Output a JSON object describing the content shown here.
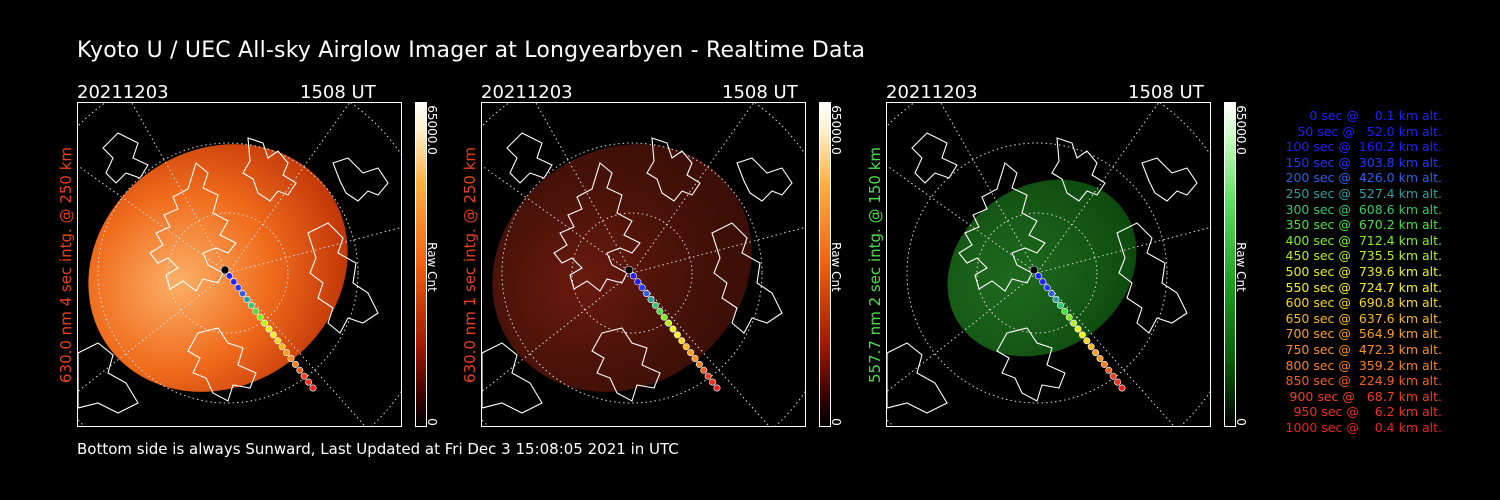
{
  "header": {
    "title": "Kyoto U / UEC All-sky Airglow Imager at Longyearbyen - Realtime Data"
  },
  "panels": [
    {
      "date": "20211203",
      "time": "1508 UT",
      "side_label": "630.0 nm 4 sec intg. @ 250 km",
      "side_color": "#e8401e",
      "cbar_max": "65000.0",
      "cbar_unit": "Raw Cnt",
      "cbar_min": "0",
      "colormap": "red-bright"
    },
    {
      "date": "20211203",
      "time": "1508 UT",
      "side_label": "630.0 nm 1 sec intg. @ 250 km",
      "side_color": "#e8401e",
      "cbar_max": "65000.0",
      "cbar_unit": "Raw Cnt",
      "cbar_min": "0",
      "colormap": "red-dark"
    },
    {
      "date": "20211203",
      "time": "1508 UT",
      "side_label": "557.7 nm 2 sec intg. @ 150 km",
      "side_color": "#48e048",
      "cbar_max": "65000.0",
      "cbar_unit": "Raw Cnt",
      "cbar_min": "0",
      "colormap": "green"
    }
  ],
  "legend": [
    {
      "text": "   0 sec @    0.1 km alt.",
      "color": "#2020ff"
    },
    {
      "text": "  50 sec @   52.0 km alt.",
      "color": "#2020ff"
    },
    {
      "text": " 100 sec @  160.2 km alt.",
      "color": "#2020ff"
    },
    {
      "text": " 150 sec @  303.8 km alt.",
      "color": "#2038ff"
    },
    {
      "text": " 200 sec @  426.0 km alt.",
      "color": "#2a60e8"
    },
    {
      "text": " 250 sec @  527.4 km alt.",
      "color": "#2aa0a0"
    },
    {
      "text": " 300 sec @  608.6 km alt.",
      "color": "#30c870"
    },
    {
      "text": " 350 sec @  670.2 km alt.",
      "color": "#48e040"
    },
    {
      "text": " 400 sec @  712.4 km alt.",
      "color": "#80f020"
    },
    {
      "text": " 450 sec @  735.5 km alt.",
      "color": "#b8f020"
    },
    {
      "text": " 500 sec @  739.6 km alt.",
      "color": "#e8f020"
    },
    {
      "text": " 550 sec @  724.7 km alt.",
      "color": "#f8f020"
    },
    {
      "text": " 600 sec @  690.8 km alt.",
      "color": "#f8d820"
    },
    {
      "text": " 650 sec @  637.6 km alt.",
      "color": "#f8b820"
    },
    {
      "text": " 700 sec @  564.9 km alt.",
      "color": "#f8a020"
    },
    {
      "text": " 750 sec @  472.3 km alt.",
      "color": "#f89020"
    },
    {
      "text": " 800 sec @  359.2 km alt.",
      "color": "#f88020"
    },
    {
      "text": " 850 sec @  224.9 km alt.",
      "color": "#f06020"
    },
    {
      "text": " 900 sec @   68.7 km alt.",
      "color": "#f04020"
    },
    {
      "text": " 950 sec @    6.2 km alt.",
      "color": "#f03020"
    },
    {
      "text": "1000 sec @    0.4 km alt.",
      "color": "#f02020"
    }
  ],
  "footer": {
    "text": "Bottom side is always Sunward, Last Updated at Fri Dec  3 15:08:05 2021 in UTC"
  }
}
